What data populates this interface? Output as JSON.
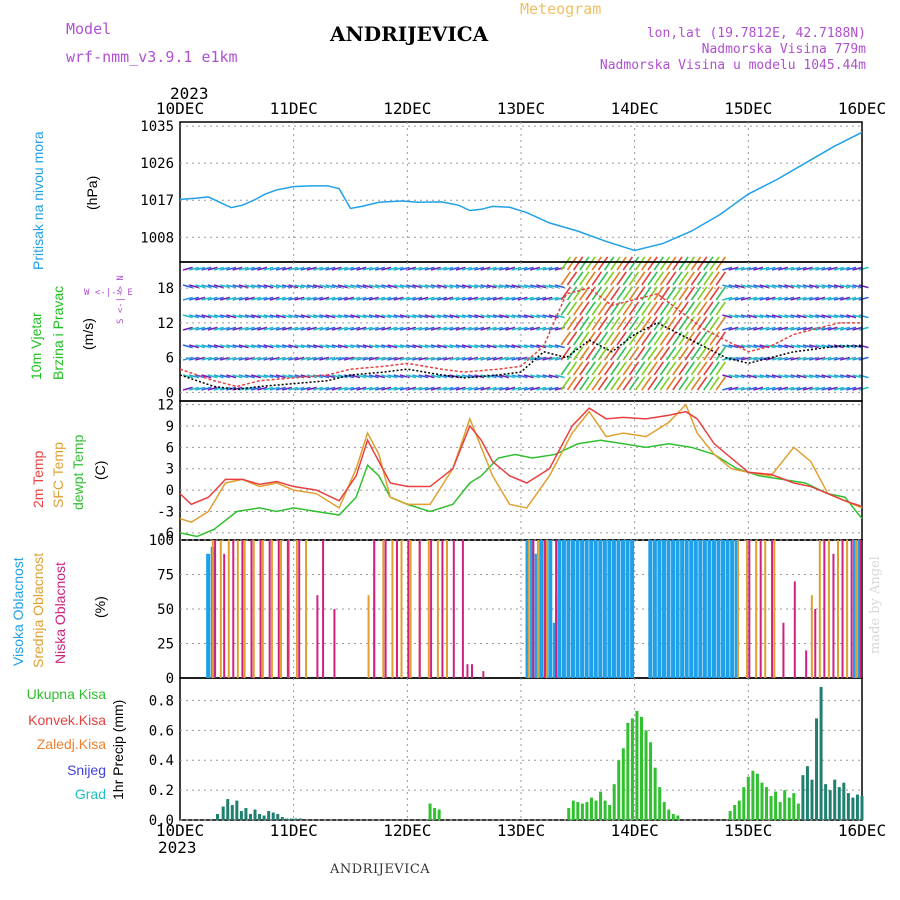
{
  "header": {
    "title": "ANDRIJEVICA",
    "meteogram_label": "Meteogram",
    "model_label": "Model",
    "model_name": "wrf-nmm_v3.9.1 e1km",
    "lonlat": "lon,lat (19.7812E, 42.7188N)",
    "elevation": "Nadmorska Visina 779m",
    "model_elevation": "Nadmorska Visina u modelu 1045.44m",
    "year": "2023"
  },
  "footer": {
    "station": "ANDRIJEVICA",
    "credit": "made by Angel"
  },
  "colors": {
    "pressure": "#20a0e8",
    "wind_label": "#20c020",
    "temp2m": "#e84040",
    "sfc_temp": "#e0a030",
    "dewpoint": "#30c030",
    "high_cloud": "#20a0e8",
    "mid_cloud": "#e0a030",
    "low_cloud": "#d02080",
    "total_precip": "#30c030",
    "conv_precip": "#e84040",
    "frozen_precip": "#f08030",
    "snow": "#4040e0",
    "hail": "#20c0c0"
  },
  "chart_data": [
    {
      "type": "line",
      "name": "pressure",
      "axis_label": "(hPa)",
      "side_label": "Pritisak na nivou mora",
      "xlabels": [
        "10DEC",
        "11DEC",
        "12DEC",
        "13DEC",
        "14DEC",
        "15DEC",
        "16DEC"
      ],
      "xlim": [
        0,
        6
      ],
      "ylim": [
        1002,
        1036
      ],
      "yticks": [
        1008,
        1017,
        1026,
        1035
      ],
      "series": [
        {
          "x": [
            0,
            0.15,
            0.25,
            0.35,
            0.45,
            0.55,
            0.65,
            0.75,
            0.85,
            1.0,
            1.15,
            1.3,
            1.4,
            1.5,
            1.6,
            1.75,
            1.95,
            2.1,
            2.3,
            2.45,
            2.55,
            2.65,
            2.75,
            2.9,
            3.05,
            3.25,
            3.5,
            3.75,
            4.0,
            4.25,
            4.5,
            4.75,
            5.0,
            5.25,
            5.5,
            5.75,
            6.0
          ],
          "y": [
            1017.2,
            1017.5,
            1017.8,
            1016.5,
            1015.2,
            1015.8,
            1017.0,
            1018.5,
            1019.5,
            1020.3,
            1020.5,
            1020.5,
            1019.8,
            1015.0,
            1015.5,
            1016.5,
            1016.8,
            1016.5,
            1016.6,
            1015.8,
            1014.5,
            1014.8,
            1015.5,
            1015.3,
            1014.0,
            1011.5,
            1009.5,
            1007.0,
            1004.8,
            1006.5,
            1009.5,
            1013.5,
            1018.5,
            1022.0,
            1026.0,
            1030.0,
            1033.5
          ]
        }
      ]
    },
    {
      "type": "line",
      "name": "wind",
      "axis_label": "(m/s)",
      "side_label_1": "10m Vjetar",
      "side_label_2": "Brzina i Pravac",
      "compass": "W <-|-> E",
      "compass_ns": "S <-|-> N",
      "xlim": [
        0,
        6
      ],
      "ylim": [
        -1.5,
        22.5
      ],
      "yticks": [
        0,
        6,
        12,
        18
      ],
      "series": [
        {
          "name": "speed",
          "x": [
            0,
            0.3,
            0.5,
            0.7,
            1.0,
            1.3,
            1.5,
            1.8,
            2.0,
            2.3,
            2.5,
            2.8,
            3.0,
            3.2,
            3.4,
            3.6,
            3.8,
            4.0,
            4.2,
            4.4,
            4.6,
            4.8,
            5.0,
            5.2,
            5.4,
            5.6,
            5.8,
            6.0
          ],
          "y": [
            3,
            1,
            0.5,
            1,
            1.5,
            2,
            3,
            3.5,
            4,
            3,
            2.5,
            3,
            3.5,
            7,
            6,
            9,
            7,
            10,
            12,
            10,
            8,
            6,
            5,
            6,
            7,
            7.5,
            8,
            8
          ]
        },
        {
          "name": "gust",
          "x": [
            0,
            0.3,
            0.5,
            0.7,
            1.0,
            1.3,
            1.5,
            1.8,
            2.0,
            2.3,
            2.5,
            2.8,
            3.0,
            3.2,
            3.4,
            3.6,
            3.8,
            4.0,
            4.2,
            4.4,
            4.6,
            4.8,
            5.0,
            5.2,
            5.4,
            5.6,
            5.8,
            6.0
          ],
          "y": [
            4,
            2,
            1,
            2,
            2.5,
            3,
            4,
            4.5,
            5,
            4,
            3.5,
            4,
            4.5,
            8,
            17,
            18,
            15,
            16,
            17,
            14,
            11,
            9,
            7,
            8,
            10,
            11,
            12,
            12
          ]
        }
      ]
    },
    {
      "type": "line",
      "name": "temperature",
      "axis_label": "(C)",
      "side_labels": [
        "2m Temp",
        "SFC Temp",
        "dewpt Temp"
      ],
      "xlim": [
        0,
        6
      ],
      "ylim": [
        -7,
        12.5
      ],
      "yticks": [
        -6,
        -3,
        0,
        3,
        6,
        9,
        12
      ],
      "series": [
        {
          "name": "2m Temp",
          "x": [
            0,
            0.1,
            0.25,
            0.4,
            0.55,
            0.7,
            0.85,
            1.0,
            1.2,
            1.4,
            1.55,
            1.65,
            1.75,
            1.85,
            2.0,
            2.2,
            2.4,
            2.55,
            2.65,
            2.75,
            2.9,
            3.05,
            3.25,
            3.45,
            3.6,
            3.75,
            3.9,
            4.1,
            4.3,
            4.45,
            4.55,
            4.7,
            4.85,
            5.0,
            5.2,
            5.4,
            5.55,
            5.7,
            5.85,
            6.0
          ],
          "y": [
            -0.5,
            -2,
            -1,
            1.5,
            1.5,
            0.8,
            1.2,
            0.5,
            0,
            -1.5,
            2,
            7,
            4,
            1,
            0.5,
            0.5,
            3,
            9,
            7,
            4,
            2,
            1,
            3,
            9,
            11.5,
            10,
            10.2,
            10,
            10.5,
            11,
            10,
            6.5,
            4.5,
            2.5,
            2.2,
            1,
            0.5,
            -0.5,
            -1.5,
            -2.3
          ]
        },
        {
          "name": "SFC Temp",
          "x": [
            0,
            0.1,
            0.25,
            0.4,
            0.55,
            0.7,
            0.85,
            1.0,
            1.2,
            1.4,
            1.55,
            1.65,
            1.75,
            1.85,
            2.0,
            2.2,
            2.4,
            2.55,
            2.65,
            2.75,
            2.9,
            3.05,
            3.25,
            3.45,
            3.6,
            3.75,
            3.9,
            4.1,
            4.3,
            4.45,
            4.55,
            4.7,
            4.85,
            5.0,
            5.2,
            5.4,
            5.55,
            5.7,
            5.85,
            6.0
          ],
          "y": [
            -4,
            -4.5,
            -3,
            1,
            1.5,
            0.5,
            1,
            0,
            -0.5,
            -2.5,
            3,
            8,
            5,
            -1,
            -2,
            -2,
            3,
            10,
            6,
            2,
            -2,
            -2.5,
            2,
            8,
            11,
            7.5,
            8,
            7.5,
            9.5,
            12,
            8,
            5,
            3,
            2.5,
            2,
            6,
            4,
            -0.5,
            -1.5,
            -2.5
          ]
        },
        {
          "name": "dewpt Temp",
          "x": [
            0,
            0.15,
            0.3,
            0.5,
            0.7,
            0.85,
            1.0,
            1.2,
            1.4,
            1.55,
            1.65,
            1.75,
            1.85,
            2.0,
            2.2,
            2.4,
            2.55,
            2.65,
            2.8,
            2.95,
            3.1,
            3.3,
            3.5,
            3.7,
            3.9,
            4.1,
            4.3,
            4.5,
            4.7,
            4.9,
            5.1,
            5.3,
            5.5,
            5.7,
            5.85,
            6.0
          ],
          "y": [
            -6,
            -6.5,
            -5.5,
            -3,
            -2.5,
            -3,
            -2.5,
            -3,
            -3.5,
            -1,
            3.5,
            2,
            -1,
            -2,
            -3,
            -2,
            1,
            2,
            4.5,
            5,
            4.5,
            5,
            6.5,
            7,
            6.5,
            6,
            6.5,
            6,
            5,
            3,
            2,
            1.5,
            1,
            -0.5,
            -1,
            -4
          ]
        }
      ]
    },
    {
      "type": "bar",
      "name": "clouds",
      "axis_label": "(%)",
      "side_labels": [
        "Visoka Oblacnost",
        "Srednja Oblacnost",
        "Niska Oblacnost"
      ],
      "xlim": [
        0,
        6
      ],
      "ylim": [
        0,
        100
      ],
      "yticks": [
        0,
        25,
        50,
        75,
        100
      ],
      "series": [
        {
          "name": "Visoka",
          "x": [
            0.23,
            0.27,
            3.04,
            3.08,
            3.12,
            3.16,
            3.2,
            3.24,
            3.28,
            3.32,
            3.36,
            3.4,
            3.44,
            3.48,
            3.52,
            3.56,
            3.6,
            3.64,
            3.68,
            3.72,
            3.76,
            3.8,
            3.84,
            3.88,
            3.92,
            3.96,
            4.12,
            4.16,
            4.2,
            4.24,
            4.28,
            4.32,
            4.36,
            4.4,
            4.44,
            4.48,
            4.52,
            4.56,
            4.6,
            4.64,
            4.68,
            4.72,
            4.76,
            4.8,
            4.84,
            4.88,
            5.92,
            5.96
          ],
          "values": [
            90,
            95,
            100,
            100,
            90,
            100,
            100,
            100,
            40,
            100,
            100,
            100,
            100,
            100,
            100,
            100,
            100,
            100,
            100,
            100,
            100,
            100,
            100,
            100,
            100,
            100,
            100,
            100,
            100,
            100,
            100,
            100,
            100,
            100,
            100,
            100,
            100,
            100,
            100,
            100,
            100,
            100,
            100,
            100,
            100,
            100,
            100,
            100
          ]
        },
        {
          "name": "Srednja",
          "x": [
            0.28,
            0.35,
            0.42,
            0.5,
            0.56,
            0.64,
            0.72,
            0.8,
            0.88,
            0.95,
            1.02,
            1.1,
            1.65,
            1.7,
            1.78,
            1.86,
            1.94,
            2.02,
            2.1,
            2.18,
            2.26,
            2.34,
            3.06,
            3.14,
            3.22,
            3.3,
            4.9,
            4.98,
            5.06,
            5.14,
            5.22,
            5.3,
            5.55,
            5.62,
            5.7,
            5.78,
            5.86,
            5.94
          ],
          "values": [
            100,
            100,
            100,
            100,
            100,
            100,
            100,
            100,
            100,
            100,
            100,
            100,
            60,
            100,
            100,
            100,
            100,
            100,
            100,
            100,
            100,
            100,
            100,
            100,
            100,
            60,
            100,
            100,
            100,
            100,
            100,
            30,
            60,
            100,
            100,
            100,
            100,
            100
          ]
        },
        {
          "name": "Niska",
          "x": [
            0.3,
            0.38,
            0.46,
            0.54,
            0.62,
            0.7,
            0.78,
            0.86,
            0.94,
            1.04,
            1.2,
            1.25,
            1.35,
            1.7,
            1.8,
            1.9,
            2.0,
            2.1,
            2.2,
            2.3,
            2.4,
            2.48,
            2.52,
            2.56,
            2.66,
            3.1,
            3.2,
            3.3,
            5.0,
            5.1,
            5.2,
            5.3,
            5.4,
            5.5,
            5.58,
            5.66,
            5.74,
            5.82,
            5.9,
            5.98
          ],
          "values": [
            100,
            90,
            100,
            100,
            100,
            100,
            100,
            100,
            100,
            100,
            60,
            100,
            50,
            100,
            100,
            100,
            100,
            100,
            100,
            100,
            100,
            100,
            10,
            10,
            5,
            100,
            100,
            100,
            100,
            100,
            100,
            40,
            70,
            20,
            50,
            100,
            90,
            100,
            100,
            100
          ]
        }
      ]
    },
    {
      "type": "bar",
      "name": "precip",
      "axis_label": "1hr Precip (mm)",
      "side_labels": [
        "Ukupna Kisa",
        "Konvek.Kisa",
        "Zaledj.Kisa",
        "Snijeg",
        "Grad"
      ],
      "xlabels": [
        "10DEC",
        "11DEC",
        "12DEC",
        "13DEC",
        "14DEC",
        "15DEC",
        "16DEC"
      ],
      "xlim": [
        0,
        6
      ],
      "ylim": [
        0,
        0.95
      ],
      "yticks": [
        0,
        0.2,
        0.4,
        0.6,
        0.8
      ],
      "series": [
        {
          "name": "Ukupna Kisa",
          "x": [
            0.33,
            0.38,
            0.42,
            0.46,
            0.5,
            0.54,
            0.58,
            0.62,
            0.66,
            0.7,
            0.74,
            0.78,
            0.82,
            0.86,
            0.9,
            0.94,
            0.98,
            1.02,
            1.06,
            2.2,
            2.24,
            2.28,
            3.42,
            3.46,
            3.5,
            3.54,
            3.58,
            3.62,
            3.66,
            3.7,
            3.74,
            3.78,
            3.82,
            3.86,
            3.9,
            3.94,
            3.98,
            4.02,
            4.06,
            4.1,
            4.14,
            4.18,
            4.22,
            4.26,
            4.3,
            4.34,
            4.38,
            4.84,
            4.88,
            4.92,
            4.96,
            5.0,
            5.04,
            5.08,
            5.12,
            5.16,
            5.2,
            5.24,
            5.28,
            5.32,
            5.36,
            5.4,
            5.44,
            5.48,
            5.52,
            5.56,
            5.6,
            5.64,
            5.68,
            5.72,
            5.76,
            5.8,
            5.84,
            5.88,
            5.92,
            5.96,
            6.0
          ],
          "values": [
            0.04,
            0.09,
            0.14,
            0.1,
            0.13,
            0.06,
            0.08,
            0.04,
            0.07,
            0.04,
            0.03,
            0.06,
            0.05,
            0.04,
            0.02,
            0.01,
            0.01,
            0.01,
            0.01,
            0.11,
            0.08,
            0.07,
            0.08,
            0.13,
            0.12,
            0.11,
            0.12,
            0.15,
            0.13,
            0.19,
            0.13,
            0.1,
            0.24,
            0.4,
            0.48,
            0.65,
            0.68,
            0.73,
            0.69,
            0.6,
            0.52,
            0.35,
            0.22,
            0.12,
            0.07,
            0.04,
            0.03,
            0.06,
            0.1,
            0.13,
            0.22,
            0.29,
            0.33,
            0.31,
            0.25,
            0.22,
            0.16,
            0.19,
            0.12,
            0.2,
            0.15,
            0.18,
            0.11,
            0.3,
            0.36,
            0.27,
            0.68,
            0.89,
            0.24,
            0.2,
            0.27,
            0.22,
            0.25,
            0.18,
            0.15,
            0.17,
            0.16
          ]
        }
      ]
    }
  ]
}
